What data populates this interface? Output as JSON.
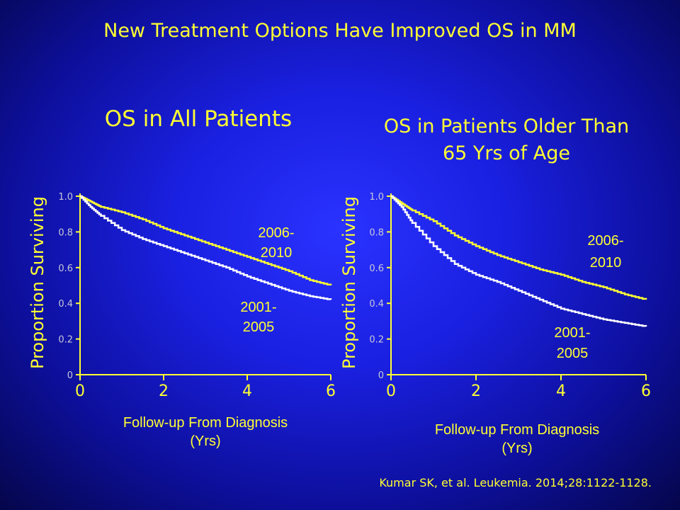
{
  "slide": {
    "title": "New Treatment Options Have Improved OS in MM",
    "citation": "Kumar SK, et al. Leukemia. 2014;28:1122-1128."
  },
  "colors": {
    "background": "#1a20e0",
    "text": "#ffff33",
    "series_2006_2010": "#ffff33",
    "series_2001_2005": "#ffffff",
    "axis": "#ffff33"
  },
  "chart_data": [
    {
      "type": "line",
      "title": "OS in All Patients",
      "xlabel_line1": "Follow-up From Diagnosis",
      "xlabel_line2": "(Yrs)",
      "ylabel": "Proportion Surviving",
      "xlim": [
        0,
        6
      ],
      "ylim": [
        0,
        1.0
      ],
      "xticks": [
        "0",
        "2",
        "4",
        "6"
      ],
      "yticks": [
        "0",
        "0.2",
        "0.4",
        "0.6",
        "0.8",
        "1.0"
      ],
      "series": [
        {
          "name": "2006-2010",
          "label_line1": "2006-",
          "label_line2": "2010",
          "x": [
            0,
            0.25,
            0.5,
            1,
            1.5,
            2,
            2.5,
            3,
            3.5,
            4,
            4.5,
            5,
            5.5,
            6
          ],
          "y": [
            1.0,
            0.97,
            0.94,
            0.91,
            0.87,
            0.82,
            0.78,
            0.74,
            0.7,
            0.66,
            0.62,
            0.58,
            0.53,
            0.5
          ]
        },
        {
          "name": "2001-2005",
          "label_line1": "2001-",
          "label_line2": "2005",
          "x": [
            0,
            0.25,
            0.5,
            1,
            1.5,
            2,
            2.5,
            3,
            3.5,
            4,
            4.5,
            5,
            5.5,
            6
          ],
          "y": [
            1.0,
            0.94,
            0.89,
            0.81,
            0.76,
            0.72,
            0.68,
            0.64,
            0.6,
            0.55,
            0.51,
            0.47,
            0.44,
            0.42
          ]
        }
      ]
    },
    {
      "type": "line",
      "title_line1": "OS in Patients Older Than",
      "title_line2": "65 Yrs of Age",
      "xlabel_line1": "Follow-up From Diagnosis",
      "xlabel_line2": "(Yrs)",
      "ylabel": "Proportion Surviving",
      "xlim": [
        0,
        6
      ],
      "ylim": [
        0,
        1.0
      ],
      "xticks": [
        "0",
        "2",
        "4",
        "6"
      ],
      "yticks": [
        "0",
        "0.2",
        "0.4",
        "0.6",
        "0.8",
        "1.0"
      ],
      "series": [
        {
          "name": "2006-2010",
          "label_line1": "2006-",
          "label_line2": "2010",
          "x": [
            0,
            0.25,
            0.5,
            1,
            1.5,
            2,
            2.5,
            3,
            3.5,
            4,
            4.5,
            5,
            5.5,
            6
          ],
          "y": [
            1.0,
            0.96,
            0.92,
            0.86,
            0.78,
            0.72,
            0.67,
            0.63,
            0.59,
            0.56,
            0.52,
            0.49,
            0.45,
            0.42
          ]
        },
        {
          "name": "2001-2005",
          "label_line1": "2001-",
          "label_line2": "2005",
          "x": [
            0,
            0.25,
            0.5,
            1,
            1.5,
            2,
            2.5,
            3,
            3.5,
            4,
            4.5,
            5,
            5.5,
            6
          ],
          "y": [
            1.0,
            0.94,
            0.85,
            0.72,
            0.62,
            0.56,
            0.52,
            0.47,
            0.42,
            0.37,
            0.34,
            0.31,
            0.29,
            0.27
          ]
        }
      ]
    }
  ]
}
